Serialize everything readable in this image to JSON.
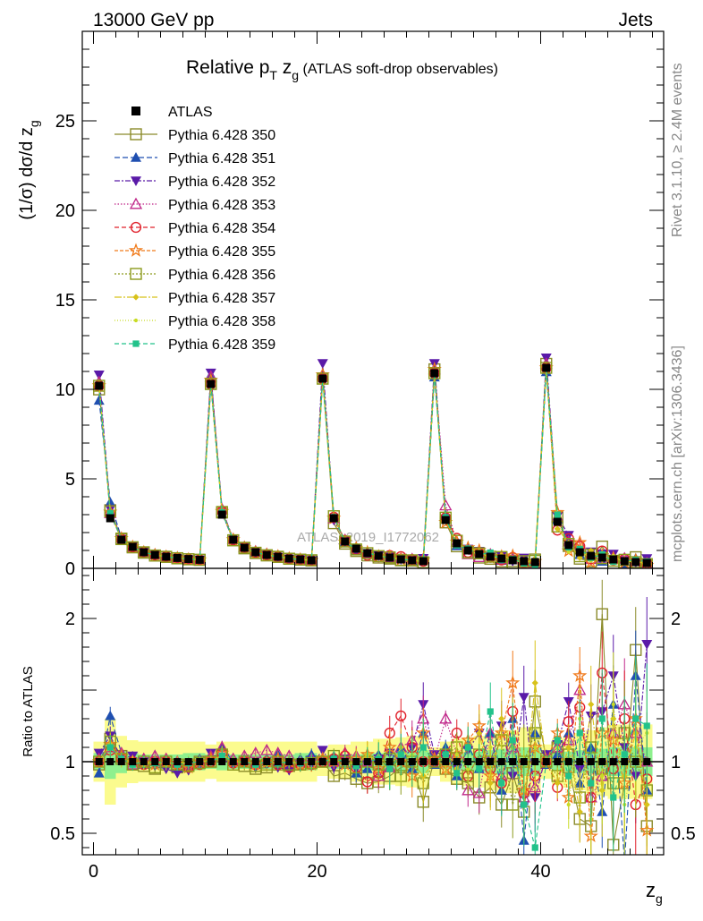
{
  "header": {
    "left": "13000 GeV pp",
    "right": "Jets"
  },
  "title": {
    "main": "Relative p",
    "main_sub": "T",
    "main_tail": " z",
    "main_tail_sub": "g",
    "suffix": " (ATLAS soft-drop observables)"
  },
  "ylabel_top": {
    "prefix": "(1/σ) dσ/d z",
    "sub": "g"
  },
  "ylabel_bottom": "Ratio to ATLAS",
  "xlabel": {
    "main": "z",
    "sub": "g"
  },
  "side_texts": {
    "rivet": "Rivet 3.1.10, ≥ 2.4M events",
    "mcplots": "mcplots.cern.ch [arXiv:1306.3436]"
  },
  "watermark": "ATLAS_2019_I1772062",
  "colors": {
    "ATLAS": "#000000",
    "350": "#8b8b2a",
    "351": "#1f4fb0",
    "352": "#5a1aa8",
    "353": "#c0288a",
    "354": "#e0202a",
    "355": "#f07a1a",
    "356": "#8c9a1c",
    "357": "#d8c21a",
    "358": "#c8dc24",
    "359": "#22c28a",
    "band_inner": "#8ef08e",
    "band_outer": "#fbfb8e"
  },
  "chart_data": [
    {
      "type": "scatter",
      "panel": "main",
      "xlim": [
        -1,
        51
      ],
      "ylim": [
        0,
        30
      ],
      "xticks": [
        0,
        20,
        40
      ],
      "yticks": [
        0,
        5,
        10,
        15,
        20,
        25
      ],
      "ytick_labels": [
        "0",
        "5",
        "10",
        "15",
        "20",
        "25"
      ],
      "legend_position": "top-left",
      "x": [
        0.5,
        1.5,
        2.5,
        3.5,
        4.5,
        5.5,
        6.5,
        7.5,
        8.5,
        9.5,
        10.5,
        11.5,
        12.5,
        13.5,
        14.5,
        15.5,
        16.5,
        17.5,
        18.5,
        19.5,
        20.5,
        21.5,
        22.5,
        23.5,
        24.5,
        25.5,
        26.5,
        27.5,
        28.5,
        29.5,
        30.5,
        31.5,
        32.5,
        33.5,
        34.5,
        35.5,
        36.5,
        37.5,
        38.5,
        39.5,
        40.5,
        41.5,
        42.5,
        43.5,
        44.5,
        45.5,
        46.5,
        47.5,
        48.5,
        49.5
      ],
      "atlas": [
        10.2,
        2.8,
        1.6,
        1.2,
        0.9,
        0.75,
        0.65,
        0.58,
        0.52,
        0.48,
        10.3,
        3.0,
        1.6,
        1.15,
        0.9,
        0.75,
        0.65,
        0.55,
        0.5,
        0.45,
        10.6,
        2.8,
        1.5,
        1.1,
        0.85,
        0.7,
        0.6,
        0.5,
        0.45,
        0.4,
        10.9,
        2.7,
        1.4,
        1.0,
        0.8,
        0.65,
        0.55,
        0.45,
        0.4,
        0.35,
        11.2,
        2.6,
        1.3,
        0.9,
        0.7,
        0.6,
        0.5,
        0.4,
        0.35,
        0.3
      ],
      "series": [
        {
          "name": "ATLAS",
          "marker": "filled-square",
          "dash": "none"
        },
        {
          "name": "Pythia 6.428 350",
          "marker": "open-square",
          "dash": "solid"
        },
        {
          "name": "Pythia 6.428 351",
          "marker": "filled-triangle-up",
          "dash": "6,3"
        },
        {
          "name": "Pythia 6.428 352",
          "marker": "filled-triangle-down",
          "dash": "6,2,2,2"
        },
        {
          "name": "Pythia 6.428 353",
          "marker": "open-triangle-up",
          "dash": "1.5,2"
        },
        {
          "name": "Pythia 6.428 354",
          "marker": "open-circle",
          "dash": "5,3"
        },
        {
          "name": "Pythia 6.428 355",
          "marker": "open-star",
          "dash": "4,2"
        },
        {
          "name": "Pythia 6.428 356",
          "marker": "open-square",
          "dash": "2,2"
        },
        {
          "name": "Pythia 6.428 357",
          "marker": "small-diamond",
          "dash": "8,2,2,2"
        },
        {
          "name": "Pythia 6.428 358",
          "marker": "small-dot",
          "dash": "1,2"
        },
        {
          "name": "Pythia 6.428 359",
          "marker": "small-square",
          "dash": "5,3"
        }
      ]
    },
    {
      "type": "scatter",
      "panel": "ratio",
      "xlim": [
        -1,
        51
      ],
      "ylim": [
        0.35,
        2.35
      ],
      "xticks": [
        0,
        20,
        40
      ],
      "xtick_labels": [
        "0",
        "20",
        "40"
      ],
      "yticks": [
        0.5,
        1,
        1.5,
        2
      ],
      "ytick_labels": [
        "0.5",
        "1",
        "",
        "2"
      ],
      "band_inner_halfwidth": [
        0.06,
        0.12,
        0.08,
        0.06,
        0.05,
        0.05,
        0.05,
        0.05,
        0.06,
        0.06,
        0.05,
        0.06,
        0.05,
        0.05,
        0.05,
        0.05,
        0.05,
        0.05,
        0.06,
        0.06,
        0.04,
        0.05,
        0.05,
        0.05,
        0.06,
        0.06,
        0.07,
        0.07,
        0.08,
        0.08,
        0.04,
        0.05,
        0.06,
        0.06,
        0.07,
        0.08,
        0.09,
        0.09,
        0.1,
        0.1,
        0.05,
        0.06,
        0.07,
        0.08,
        0.08,
        0.09,
        0.1,
        0.1,
        0.1,
        0.1
      ],
      "band_outer_halfwidth": [
        0.14,
        0.3,
        0.18,
        0.15,
        0.14,
        0.14,
        0.14,
        0.14,
        0.14,
        0.14,
        0.12,
        0.14,
        0.14,
        0.14,
        0.14,
        0.14,
        0.14,
        0.14,
        0.14,
        0.14,
        0.1,
        0.12,
        0.12,
        0.14,
        0.14,
        0.16,
        0.16,
        0.17,
        0.18,
        0.18,
        0.1,
        0.14,
        0.16,
        0.17,
        0.18,
        0.2,
        0.22,
        0.22,
        0.24,
        0.24,
        0.12,
        0.16,
        0.18,
        0.2,
        0.22,
        0.24,
        0.26,
        0.26,
        0.26,
        0.26
      ],
      "series_ratios": {
        "350": [
          0.98,
          1.16,
          1.04,
          0.98,
          0.97,
          0.95,
          0.98,
          0.96,
          0.98,
          1.0,
          1.0,
          1.04,
          0.98,
          0.97,
          0.95,
          0.96,
          0.98,
          0.97,
          0.98,
          1.0,
          1.0,
          0.9,
          0.92,
          0.88,
          0.85,
          0.86,
          0.9,
          0.96,
          0.98,
          0.72,
          1.02,
          0.95,
          0.88,
          0.85,
          0.75,
          0.82,
          0.7,
          0.92,
          0.65,
          1.42,
          1.02,
          1.1,
          0.96,
          0.6,
          0.55,
          2.03,
          0.42,
          0.85,
          1.78,
          0.55
        ],
        "351": [
          0.92,
          1.32,
          1.06,
          1.02,
          0.98,
          1.0,
          1.02,
          0.96,
          0.98,
          1.02,
          1.05,
          1.1,
          1.0,
          1.02,
          0.98,
          1.02,
          1.05,
          1.0,
          1.02,
          1.05,
          1.02,
          1.04,
          0.98,
          0.92,
          0.95,
          1.05,
          1.0,
          1.1,
          0.95,
          1.2,
          0.98,
          1.1,
          0.9,
          1.12,
          0.95,
          1.2,
          0.8,
          1.3,
          0.45,
          1.2,
          0.98,
          1.05,
          1.2,
          0.85,
          1.1,
          0.65,
          1.4,
          0.3,
          1.6,
          0.8
        ],
        "352": [
          1.06,
          1.18,
          1.02,
          1.04,
          1.0,
          0.97,
          0.95,
          0.92,
          0.94,
          0.98,
          1.06,
          1.02,
          0.98,
          1.0,
          0.96,
          0.98,
          0.96,
          0.94,
          0.98,
          0.98,
          1.08,
          0.96,
          1.02,
          0.95,
          0.98,
          1.02,
          1.06,
          1.0,
          1.1,
          1.4,
          1.05,
          1.02,
          0.95,
          1.08,
          1.2,
          1.0,
          1.25,
          0.9,
          1.45,
          0.75,
          1.05,
          1.12,
          1.42,
          0.95,
          1.32,
          1.35,
          1.6,
          1.1,
          0.9,
          1.82
        ],
        "353": [
          1.02,
          1.1,
          1.06,
          0.98,
          1.02,
          1.04,
          1.02,
          1.0,
          0.98,
          1.0,
          1.04,
          1.1,
          1.02,
          1.04,
          1.06,
          1.08,
          1.06,
          1.04,
          1.0,
          1.02,
          1.02,
          1.0,
          1.06,
          1.04,
          1.0,
          0.9,
          0.96,
          1.1,
          1.15,
          1.3,
          1.02,
          1.3,
          1.05,
          0.8,
          0.78,
          1.2,
          0.9,
          1.1,
          0.75,
          0.82,
          1.02,
          1.1,
          1.15,
          1.5,
          0.75,
          0.9,
          1.2,
          1.4,
          1.2,
          1.0
        ],
        "354": [
          1.0,
          1.08,
          1.02,
          1.0,
          0.98,
          1.0,
          1.0,
          0.98,
          0.96,
          0.98,
          1.0,
          1.06,
          0.99,
          1.0,
          0.98,
          1.0,
          0.98,
          0.96,
          0.98,
          0.98,
          1.0,
          1.02,
          1.04,
          0.96,
          0.86,
          0.92,
          1.2,
          1.32,
          1.1,
          1.0,
          1.0,
          1.05,
          1.2,
          0.9,
          1.05,
          0.95,
          0.85,
          1.35,
          0.78,
          0.9,
          1.0,
          0.82,
          1.28,
          1.38,
          0.75,
          1.62,
          0.95,
          1.3,
          0.7,
          0.88
        ],
        "355": [
          1.0,
          1.12,
          1.04,
          1.0,
          0.99,
          0.98,
          1.0,
          0.98,
          0.96,
          1.0,
          1.02,
          1.06,
          1.0,
          1.0,
          0.98,
          1.0,
          1.02,
          1.0,
          0.98,
          0.98,
          1.02,
          1.0,
          0.98,
          1.02,
          1.05,
          0.95,
          1.1,
          1.0,
          0.9,
          1.2,
          1.02,
          0.95,
          1.05,
          1.15,
          1.25,
          0.9,
          1.2,
          1.55,
          0.8,
          1.1,
          1.0,
          1.2,
          0.75,
          1.6,
          0.48,
          1.2,
          1.15,
          0.85,
          1.3,
          0.52
        ],
        "356": [
          1.0,
          1.14,
          1.02,
          0.98,
          1.0,
          0.96,
          1.0,
          0.98,
          0.97,
          0.99,
          1.0,
          1.05,
          0.98,
          1.0,
          0.97,
          0.98,
          1.0,
          0.98,
          0.98,
          0.99,
          1.0,
          1.04,
          1.0,
          0.96,
          1.0,
          0.98,
          1.02,
          0.9,
          1.0,
          0.85,
          1.0,
          1.05,
          1.1,
          0.9,
          1.05,
          1.0,
          1.15,
          0.7,
          1.0,
          1.2,
          1.0,
          0.9,
          1.05,
          0.75,
          1.1,
          0.95,
          0.85,
          1.2,
          1.0,
          0.8
        ],
        "357": [
          1.0,
          1.12,
          1.0,
          1.0,
          0.98,
          1.0,
          0.98,
          1.0,
          0.99,
          1.0,
          1.01,
          1.04,
          1.0,
          0.99,
          1.0,
          0.98,
          1.0,
          1.0,
          0.99,
          1.0,
          1.0,
          1.02,
          1.0,
          0.98,
          1.05,
          1.0,
          0.95,
          1.1,
          1.0,
          0.9,
          1.0,
          1.02,
          0.95,
          1.1,
          1.2,
          0.85,
          1.3,
          1.1,
          0.7,
          1.55,
          1.0,
          0.85,
          1.1,
          0.65,
          1.4,
          0.8,
          1.3,
          0.9,
          1.2,
          0.7
        ],
        "358": [
          1.0,
          1.1,
          1.02,
          1.0,
          0.99,
          1.0,
          1.0,
          0.98,
          1.0,
          1.0,
          1.0,
          1.05,
          1.0,
          1.0,
          0.99,
          1.0,
          1.0,
          1.0,
          1.0,
          1.0,
          1.0,
          1.02,
          0.98,
          1.0,
          1.02,
          1.04,
          0.96,
          1.0,
          1.05,
          1.1,
          1.0,
          0.98,
          1.05,
          0.95,
          1.0,
          1.1,
          0.9,
          1.2,
          0.8,
          1.1,
          1.0,
          1.1,
          0.7,
          1.3,
          0.6,
          0.9,
          1.4,
          0.7,
          1.1,
          1.2
        ],
        "359": [
          1.0,
          1.1,
          1.02,
          0.98,
          1.0,
          0.99,
          1.0,
          0.98,
          0.99,
          1.0,
          1.0,
          1.04,
          1.0,
          1.0,
          0.98,
          1.0,
          0.99,
          1.0,
          0.99,
          1.0,
          1.0,
          1.02,
          1.0,
          0.97,
          1.0,
          1.02,
          0.95,
          1.05,
          1.0,
          1.1,
          1.0,
          1.05,
          0.92,
          1.1,
          0.95,
          1.35,
          0.85,
          1.15,
          0.7,
          0.4,
          1.0,
          1.15,
          0.9,
          1.2,
          0.85,
          1.3,
          0.75,
          1.05,
          1.3,
          1.25
        ]
      },
      "ratio_errors": [
        0.02,
        0.06,
        0.03,
        0.03,
        0.03,
        0.03,
        0.03,
        0.03,
        0.03,
        0.03,
        0.02,
        0.04,
        0.03,
        0.03,
        0.03,
        0.03,
        0.03,
        0.03,
        0.04,
        0.04,
        0.02,
        0.04,
        0.05,
        0.06,
        0.07,
        0.08,
        0.1,
        0.1,
        0.12,
        0.14,
        0.02,
        0.05,
        0.08,
        0.1,
        0.12,
        0.14,
        0.16,
        0.18,
        0.2,
        0.22,
        0.03,
        0.08,
        0.12,
        0.16,
        0.2,
        0.24,
        0.26,
        0.28,
        0.3,
        0.3
      ]
    }
  ]
}
